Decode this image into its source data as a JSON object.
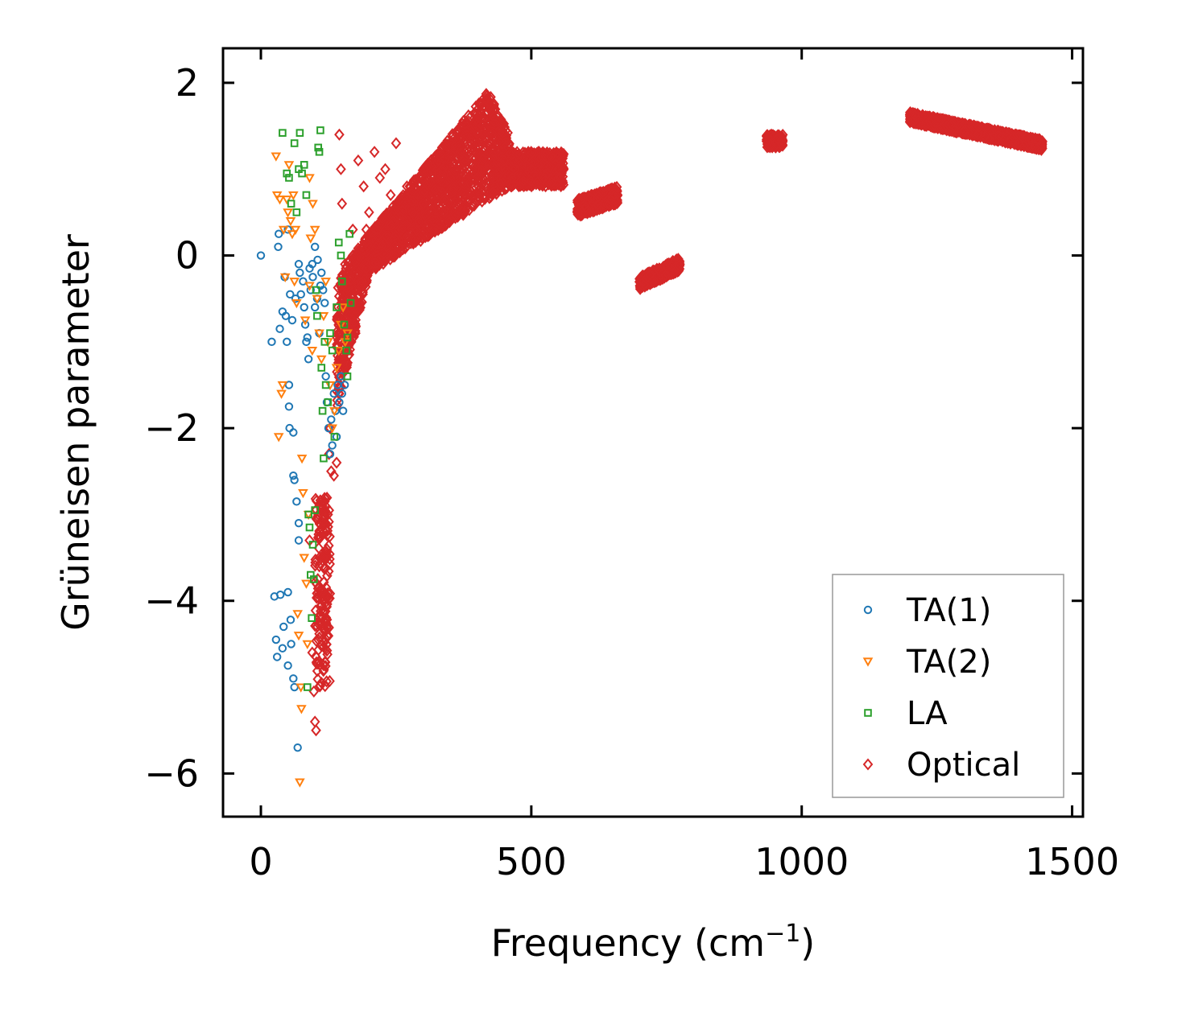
{
  "chart_data": {
    "type": "scatter",
    "title": "",
    "xlabel": "Frequency (cm",
    "xlabel_sup": "−1",
    "xlabel_end": ")",
    "ylabel": "Grüneisen parameter",
    "xlim": [
      -70,
      1520
    ],
    "ylim": [
      -6.5,
      2.4
    ],
    "xticks": [
      0,
      500,
      1000,
      1500
    ],
    "xtick_labels": [
      "0",
      "500",
      "1000",
      "1500"
    ],
    "yticks": [
      2,
      0,
      -2,
      -4,
      -6
    ],
    "ytick_labels": [
      "2",
      "0",
      "−2",
      "−4",
      "−6"
    ],
    "grid": false,
    "legend_position": "lower-right",
    "series": [
      {
        "name": "TA(1)",
        "marker": "circle",
        "color": "#1f77b4",
        "points": [
          [
            0,
            0
          ],
          [
            20,
            -1.0
          ],
          [
            25,
            -3.95
          ],
          [
            28,
            -4.45
          ],
          [
            30,
            -4.65
          ],
          [
            32,
            0.1
          ],
          [
            33,
            0.25
          ],
          [
            35,
            -0.85
          ],
          [
            36,
            -3.93
          ],
          [
            40,
            -4.55
          ],
          [
            40,
            -0.65
          ],
          [
            42,
            -4.3
          ],
          [
            44,
            -0.25
          ],
          [
            46,
            -0.7
          ],
          [
            48,
            -1.0
          ],
          [
            50,
            -4.75
          ],
          [
            50,
            -3.9
          ],
          [
            50,
            0.3
          ],
          [
            52,
            -1.5
          ],
          [
            52,
            -1.75
          ],
          [
            53,
            -2.0
          ],
          [
            54,
            -0.45
          ],
          [
            55,
            -4.22
          ],
          [
            56,
            -4.5
          ],
          [
            58,
            -0.75
          ],
          [
            60,
            -2.05
          ],
          [
            60,
            -2.55
          ],
          [
            60,
            -4.9
          ],
          [
            62,
            -5.0
          ],
          [
            62,
            -2.6
          ],
          [
            64,
            -0.5
          ],
          [
            66,
            -2.85
          ],
          [
            68,
            -5.7
          ],
          [
            70,
            -3.1
          ],
          [
            70,
            -3.3
          ],
          [
            70,
            -0.1
          ],
          [
            72,
            -0.2
          ],
          [
            74,
            -0.45
          ],
          [
            78,
            -0.3
          ],
          [
            80,
            -0.6
          ],
          [
            82,
            -0.8
          ],
          [
            84,
            -1.0
          ],
          [
            86,
            -0.95
          ],
          [
            88,
            -1.2
          ],
          [
            92,
            -0.4
          ],
          [
            96,
            -0.25
          ],
          [
            100,
            -0.6
          ],
          [
            104,
            -0.5
          ],
          [
            108,
            -0.9
          ],
          [
            110,
            -0.35
          ],
          [
            112,
            -0.2
          ],
          [
            115,
            -0.4
          ],
          [
            118,
            -0.55
          ],
          [
            120,
            -1.4
          ],
          [
            122,
            -1.7
          ],
          [
            125,
            -2.0
          ],
          [
            128,
            -2.3
          ],
          [
            130,
            -1.9
          ],
          [
            132,
            -2.2
          ],
          [
            135,
            -1.6
          ],
          [
            138,
            -1.8
          ],
          [
            140,
            -2.1
          ],
          [
            142,
            -1.5
          ],
          [
            145,
            -1.7
          ],
          [
            148,
            -1.4
          ],
          [
            150,
            -1.6
          ],
          [
            152,
            -1.8
          ],
          [
            155,
            -1.5
          ],
          [
            95,
            -0.1
          ],
          [
            105,
            -0.05
          ],
          [
            100,
            0.1
          ],
          [
            90,
            -0.15
          ]
        ]
      },
      {
        "name": "TA(2)",
        "marker": "triangle-down",
        "color": "#ff7f0e",
        "points": [
          [
            28,
            1.15
          ],
          [
            30,
            0.7
          ],
          [
            33,
            -2.1
          ],
          [
            35,
            0.65
          ],
          [
            38,
            -1.6
          ],
          [
            40,
            -1.5
          ],
          [
            42,
            0.3
          ],
          [
            45,
            -0.25
          ],
          [
            48,
            0.65
          ],
          [
            50,
            0.5
          ],
          [
            52,
            1.05
          ],
          [
            55,
            0.4
          ],
          [
            58,
            0.25
          ],
          [
            60,
            0.7
          ],
          [
            62,
            -0.3
          ],
          [
            64,
            0.3
          ],
          [
            66,
            -0.55
          ],
          [
            68,
            -4.15
          ],
          [
            70,
            -4.4
          ],
          [
            72,
            -6.1
          ],
          [
            74,
            -5.0
          ],
          [
            75,
            -5.25
          ],
          [
            76,
            -2.35
          ],
          [
            78,
            -2.75
          ],
          [
            80,
            -3.5
          ],
          [
            82,
            -0.75
          ],
          [
            84,
            -3.8
          ],
          [
            86,
            -4.5
          ],
          [
            88,
            -3.0
          ],
          [
            90,
            -0.35
          ],
          [
            92,
            0.2
          ],
          [
            96,
            0.6
          ],
          [
            100,
            0.3
          ],
          [
            104,
            -0.5
          ],
          [
            108,
            -0.9
          ],
          [
            112,
            -1.2
          ],
          [
            116,
            -0.7
          ],
          [
            120,
            -0.3
          ],
          [
            124,
            -1.0
          ],
          [
            128,
            -1.5
          ],
          [
            132,
            -2.0
          ],
          [
            136,
            -1.8
          ],
          [
            140,
            -1.3
          ],
          [
            144,
            -1.1
          ],
          [
            148,
            -0.8
          ],
          [
            152,
            -0.6
          ],
          [
            156,
            -1.0
          ],
          [
            160,
            -0.9
          ],
          [
            90,
            0.9
          ],
          [
            95,
            -1.1
          ]
        ]
      },
      {
        "name": "LA",
        "marker": "square",
        "color": "#2ca02c",
        "points": [
          [
            40,
            1.42
          ],
          [
            48,
            0.95
          ],
          [
            52,
            0.9
          ],
          [
            56,
            0.6
          ],
          [
            62,
            1.3
          ],
          [
            66,
            0.5
          ],
          [
            70,
            1.0
          ],
          [
            72,
            1.42
          ],
          [
            76,
            0.95
          ],
          [
            80,
            1.05
          ],
          [
            84,
            0.7
          ],
          [
            86,
            -5.0
          ],
          [
            88,
            -3.0
          ],
          [
            90,
            -3.15
          ],
          [
            92,
            -3.7
          ],
          [
            94,
            -4.2
          ],
          [
            96,
            -3.35
          ],
          [
            98,
            -3.75
          ],
          [
            100,
            -2.95
          ],
          [
            102,
            -0.4
          ],
          [
            104,
            -0.7
          ],
          [
            106,
            1.25
          ],
          [
            108,
            1.2
          ],
          [
            110,
            1.45
          ],
          [
            112,
            -1.3
          ],
          [
            114,
            -1.8
          ],
          [
            116,
            -2.35
          ],
          [
            118,
            -1.0
          ],
          [
            120,
            -1.5
          ],
          [
            124,
            -1.7
          ],
          [
            128,
            -0.9
          ],
          [
            132,
            -1.1
          ],
          [
            136,
            -2.1
          ],
          [
            140,
            -0.6
          ],
          [
            144,
            0.15
          ],
          [
            148,
            0.0
          ],
          [
            150,
            -0.3
          ],
          [
            154,
            -0.8
          ],
          [
            158,
            -1.1
          ],
          [
            160,
            -1.4
          ],
          [
            164,
            0.25
          ],
          [
            166,
            -0.55
          ],
          [
            160,
            -0.95
          ]
        ]
      },
      {
        "name": "Optical",
        "marker": "diamond",
        "color": "#d62728",
        "points": [
          [
            90,
            -3.3
          ],
          [
            95,
            -4.6
          ],
          [
            98,
            -5.05
          ],
          [
            100,
            -5.4
          ],
          [
            102,
            -5.5
          ],
          [
            104,
            -4.3
          ],
          [
            106,
            -3.9
          ],
          [
            108,
            -3.6
          ],
          [
            110,
            -3.2
          ],
          [
            112,
            -2.95
          ],
          [
            114,
            -4.0
          ],
          [
            116,
            -3.5
          ],
          [
            118,
            -2.85
          ],
          [
            120,
            -3.1
          ],
          [
            122,
            -3.4
          ],
          [
            124,
            -3.0
          ],
          [
            126,
            -2.3
          ],
          [
            128,
            -2.0
          ],
          [
            130,
            -2.5
          ],
          [
            135,
            -2.55
          ],
          [
            140,
            -2.4
          ],
          [
            145,
            1.4
          ],
          [
            148,
            1.0
          ],
          [
            150,
            0.6
          ],
          [
            155,
            -1.0
          ],
          [
            160,
            -0.2
          ],
          [
            165,
            -0.6
          ],
          [
            170,
            0.3
          ],
          [
            175,
            -0.9
          ],
          [
            180,
            1.1
          ],
          [
            190,
            0.8
          ],
          [
            195,
            0.3
          ],
          [
            200,
            0.5
          ],
          [
            210,
            1.2
          ],
          [
            220,
            0.9
          ],
          [
            230,
            1.0
          ],
          [
            240,
            0.7
          ],
          [
            250,
            1.3
          ],
          [
            260,
            0.3
          ],
          [
            270,
            0.8
          ],
          [
            280,
            0.5
          ],
          [
            300,
            0.6
          ],
          [
            320,
            0.4
          ],
          [
            350,
            0.9
          ],
          [
            380,
            0.7
          ],
          [
            400,
            0.9
          ],
          [
            420,
            1.0
          ],
          [
            450,
            1.1
          ],
          [
            470,
            1.0
          ],
          [
            500,
            1.0
          ],
          [
            530,
            0.95
          ],
          [
            550,
            1.0
          ]
        ],
        "clusters": [
          {
            "x": [
              100,
              128
            ],
            "y": [
              -5.0,
              -2.8
            ]
          },
          {
            "x": [
              140,
              460
            ],
            "y": [
              -0.4,
              2.0
            ]
          },
          {
            "x": [
              460,
              560
            ],
            "y": [
              0.8,
              1.2
            ]
          },
          {
            "x": [
              585,
              660
            ],
            "y": [
              0.5,
              0.8
            ]
          },
          {
            "x": [
              700,
              775
            ],
            "y": [
              -0.35,
              -0.1
            ]
          },
          {
            "x": [
              935,
              965
            ],
            "y": [
              1.25,
              1.4
            ]
          },
          {
            "x": [
              1200,
              1445
            ],
            "y": [
              1.28,
              1.62
            ]
          }
        ]
      }
    ]
  }
}
